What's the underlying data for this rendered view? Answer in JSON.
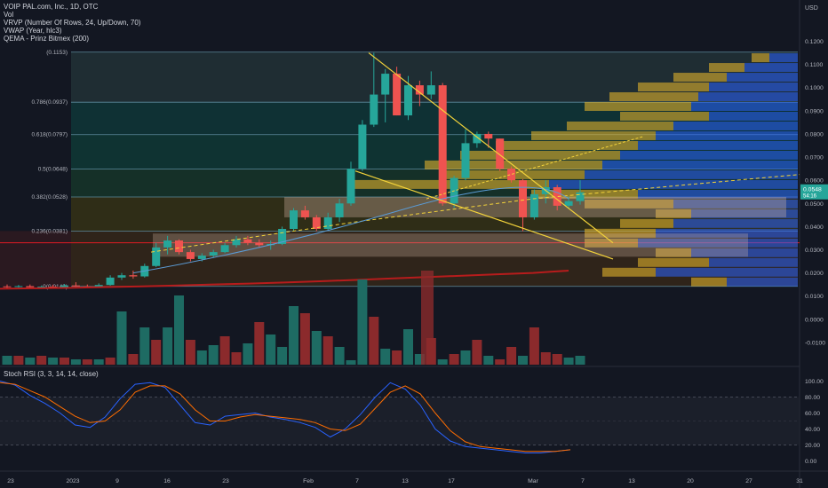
{
  "legend": {
    "symbol": "VOIP PAL.com, Inc., 1D, OTC",
    "vol": "Vol",
    "vrvp": "VRVP (Number Of Rows, 24, Up/Down, 70)",
    "vwap": "VWAP (Year, hlc3)",
    "qema": "QEMA - Prinz Bitmex (200)"
  },
  "stoch_title": "Stoch RSI (3, 3, 14, 14, close)",
  "colors": {
    "up": "#26a69a",
    "down": "#ef5350",
    "fib": "#4caf50",
    "trend": "#f3d33a",
    "qema": "#e01b24",
    "k": "#2962ff",
    "d": "#ff6d00"
  },
  "chart_data": [
    {
      "type": "candlestick",
      "currency": "USD",
      "ylim": [
        -0.015,
        0.129
      ],
      "y_ticks": [
        "0.1200",
        "0.1100",
        "0.1000",
        "0.0900",
        "0.0800",
        "0.0700",
        "0.0600",
        "0.0500",
        "0.0400",
        "0.0300",
        "0.0200",
        "0.0100",
        "0.0000",
        "-0.0100"
      ],
      "x_ticks": [
        "23",
        "2023",
        "9",
        "16",
        "23",
        "Feb",
        "7",
        "13",
        "17",
        "Mar",
        "7",
        "13",
        "20",
        "27",
        "31"
      ],
      "last_price": "0.0548",
      "last_price_sub": "54:16",
      "fib_levels": [
        {
          "label": "(0.1153)",
          "value": 0.1153
        },
        {
          "label": "0.786(0.0937)",
          "value": 0.0937
        },
        {
          "label": "0.618(0.0797)",
          "value": 0.0797
        },
        {
          "label": "0.5(0.0648)",
          "value": 0.0648
        },
        {
          "label": "0.382(0.0528)",
          "value": 0.0528
        },
        {
          "label": "0.236(0.0381)",
          "value": 0.0381
        },
        {
          "label": "0(0.0142)",
          "value": 0.0142
        }
      ],
      "candles": [
        {
          "o": 0.0142,
          "h": 0.015,
          "l": 0.0135,
          "c": 0.014
        },
        {
          "o": 0.014,
          "h": 0.0148,
          "l": 0.0136,
          "c": 0.0143
        },
        {
          "o": 0.0143,
          "h": 0.015,
          "l": 0.0134,
          "c": 0.0138
        },
        {
          "o": 0.0138,
          "h": 0.0146,
          "l": 0.0133,
          "c": 0.0141
        },
        {
          "o": 0.0141,
          "h": 0.0149,
          "l": 0.0136,
          "c": 0.0139
        },
        {
          "o": 0.0139,
          "h": 0.0152,
          "l": 0.0136,
          "c": 0.0146
        },
        {
          "o": 0.0146,
          "h": 0.016,
          "l": 0.014,
          "c": 0.0142
        },
        {
          "o": 0.0142,
          "h": 0.015,
          "l": 0.0138,
          "c": 0.014
        },
        {
          "o": 0.014,
          "h": 0.0155,
          "l": 0.0137,
          "c": 0.0148
        },
        {
          "o": 0.0148,
          "h": 0.019,
          "l": 0.0145,
          "c": 0.018
        },
        {
          "o": 0.018,
          "h": 0.02,
          "l": 0.017,
          "c": 0.019
        },
        {
          "o": 0.019,
          "h": 0.021,
          "l": 0.0175,
          "c": 0.0185
        },
        {
          "o": 0.0185,
          "h": 0.024,
          "l": 0.018,
          "c": 0.023
        },
        {
          "o": 0.023,
          "h": 0.033,
          "l": 0.0225,
          "c": 0.031
        },
        {
          "o": 0.031,
          "h": 0.036,
          "l": 0.028,
          "c": 0.034
        },
        {
          "o": 0.034,
          "h": 0.0345,
          "l": 0.028,
          "c": 0.029
        },
        {
          "o": 0.029,
          "h": 0.03,
          "l": 0.025,
          "c": 0.026
        },
        {
          "o": 0.026,
          "h": 0.0285,
          "l": 0.025,
          "c": 0.0275
        },
        {
          "o": 0.0275,
          "h": 0.03,
          "l": 0.0265,
          "c": 0.029
        },
        {
          "o": 0.029,
          "h": 0.033,
          "l": 0.0285,
          "c": 0.032
        },
        {
          "o": 0.032,
          "h": 0.036,
          "l": 0.031,
          "c": 0.0345
        },
        {
          "o": 0.0345,
          "h": 0.036,
          "l": 0.032,
          "c": 0.033
        },
        {
          "o": 0.033,
          "h": 0.0345,
          "l": 0.031,
          "c": 0.032
        },
        {
          "o": 0.032,
          "h": 0.034,
          "l": 0.03,
          "c": 0.0325
        },
        {
          "o": 0.0325,
          "h": 0.04,
          "l": 0.032,
          "c": 0.039
        },
        {
          "o": 0.039,
          "h": 0.048,
          "l": 0.038,
          "c": 0.047
        },
        {
          "o": 0.047,
          "h": 0.049,
          "l": 0.043,
          "c": 0.044
        },
        {
          "o": 0.044,
          "h": 0.045,
          "l": 0.038,
          "c": 0.039
        },
        {
          "o": 0.039,
          "h": 0.046,
          "l": 0.0385,
          "c": 0.044
        },
        {
          "o": 0.044,
          "h": 0.052,
          "l": 0.042,
          "c": 0.05
        },
        {
          "o": 0.05,
          "h": 0.068,
          "l": 0.049,
          "c": 0.065
        },
        {
          "o": 0.065,
          "h": 0.086,
          "l": 0.064,
          "c": 0.084
        },
        {
          "o": 0.084,
          "h": 0.115,
          "l": 0.083,
          "c": 0.097
        },
        {
          "o": 0.097,
          "h": 0.108,
          "l": 0.085,
          "c": 0.106
        },
        {
          "o": 0.106,
          "h": 0.109,
          "l": 0.088,
          "c": 0.088
        },
        {
          "o": 0.088,
          "h": 0.105,
          "l": 0.086,
          "c": 0.101
        },
        {
          "o": 0.101,
          "h": 0.103,
          "l": 0.092,
          "c": 0.097
        },
        {
          "o": 0.097,
          "h": 0.107,
          "l": 0.095,
          "c": 0.101
        },
        {
          "o": 0.101,
          "h": 0.102,
          "l": 0.049,
          "c": 0.05
        },
        {
          "o": 0.05,
          "h": 0.062,
          "l": 0.048,
          "c": 0.061
        },
        {
          "o": 0.061,
          "h": 0.082,
          "l": 0.06,
          "c": 0.076
        },
        {
          "o": 0.076,
          "h": 0.081,
          "l": 0.074,
          "c": 0.08
        },
        {
          "o": 0.08,
          "h": 0.081,
          "l": 0.074,
          "c": 0.078
        },
        {
          "o": 0.078,
          "h": 0.078,
          "l": 0.064,
          "c": 0.065
        },
        {
          "o": 0.065,
          "h": 0.066,
          "l": 0.059,
          "c": 0.06
        },
        {
          "o": 0.06,
          "h": 0.0605,
          "l": 0.038,
          "c": 0.044
        },
        {
          "o": 0.044,
          "h": 0.056,
          "l": 0.043,
          "c": 0.054
        },
        {
          "o": 0.054,
          "h": 0.06,
          "l": 0.05,
          "c": 0.057
        },
        {
          "o": 0.057,
          "h": 0.058,
          "l": 0.047,
          "c": 0.049
        },
        {
          "o": 0.049,
          "h": 0.053,
          "l": 0.048,
          "c": 0.051
        },
        {
          "o": 0.051,
          "h": 0.06,
          "l": 0.0495,
          "c": 0.0548
        }
      ],
      "volumes": [
        {
          "v": 0.1,
          "up": true
        },
        {
          "v": 0.1,
          "up": false
        },
        {
          "v": 0.08,
          "up": true
        },
        {
          "v": 0.1,
          "up": false
        },
        {
          "v": 0.08,
          "up": true
        },
        {
          "v": 0.08,
          "up": false
        },
        {
          "v": 0.06,
          "up": true
        },
        {
          "v": 0.06,
          "up": false
        },
        {
          "v": 0.06,
          "up": true
        },
        {
          "v": 0.08,
          "up": false
        },
        {
          "v": 0.6,
          "up": true
        },
        {
          "v": 0.12,
          "up": false
        },
        {
          "v": 0.42,
          "up": true
        },
        {
          "v": 0.28,
          "up": false
        },
        {
          "v": 0.42,
          "up": true
        },
        {
          "v": 0.78,
          "up": true
        },
        {
          "v": 0.28,
          "up": false
        },
        {
          "v": 0.16,
          "up": true
        },
        {
          "v": 0.22,
          "up": true
        },
        {
          "v": 0.32,
          "up": false
        },
        {
          "v": 0.14,
          "up": false
        },
        {
          "v": 0.24,
          "up": true
        },
        {
          "v": 0.48,
          "up": false
        },
        {
          "v": 0.34,
          "up": true
        },
        {
          "v": 0.2,
          "up": true
        },
        {
          "v": 0.66,
          "up": true
        },
        {
          "v": 0.58,
          "up": false
        },
        {
          "v": 0.38,
          "up": true
        },
        {
          "v": 0.32,
          "up": false
        },
        {
          "v": 0.2,
          "up": true
        },
        {
          "v": 0.05,
          "up": true
        },
        {
          "v": 0.96,
          "up": true
        },
        {
          "v": 0.54,
          "up": false
        },
        {
          "v": 0.18,
          "up": true
        },
        {
          "v": 0.16,
          "up": false
        },
        {
          "v": 0.4,
          "up": true
        },
        {
          "v": 0.12,
          "up": true
        },
        {
          "v": 0.3,
          "up": false
        },
        {
          "v": 0.06,
          "up": true
        },
        {
          "v": 0.12,
          "up": false
        },
        {
          "v": 0.16,
          "up": true
        },
        {
          "v": 0.28,
          "up": false
        },
        {
          "v": 0.1,
          "up": true
        },
        {
          "v": 0.06,
          "up": false
        },
        {
          "v": 0.2,
          "up": false
        },
        {
          "v": 0.1,
          "up": true
        },
        {
          "v": 0.42,
          "up": false
        },
        {
          "v": 0.14,
          "up": false
        },
        {
          "v": 0.12,
          "up": false
        },
        {
          "v": 0.08,
          "up": true
        },
        {
          "v": 0.1,
          "up": true
        }
      ],
      "vrvp_rows": [
        {
          "up": 0.1,
          "down": 0.2
        },
        {
          "up": 0.15,
          "down": 0.4
        },
        {
          "up": 0.2,
          "down": 0.25
        },
        {
          "up": 0.1,
          "down": 0.3
        },
        {
          "up": 0.15,
          "down": 0.45
        },
        {
          "up": 0.2,
          "down": 0.4
        },
        {
          "up": 0.15,
          "down": 0.35
        },
        {
          "up": 0.1,
          "down": 0.3
        },
        {
          "up": 0.25,
          "down": 0.35
        },
        {
          "up": 0.3,
          "down": 0.45
        },
        {
          "up": 0.55,
          "down": 0.7
        },
        {
          "up": 0.4,
          "down": 0.6
        },
        {
          "up": 0.5,
          "down": 0.55
        },
        {
          "up": 0.45,
          "down": 0.5
        },
        {
          "up": 0.4,
          "down": 0.45
        },
        {
          "up": 0.35,
          "down": 0.4
        },
        {
          "up": 0.3,
          "down": 0.35
        },
        {
          "up": 0.25,
          "down": 0.25
        },
        {
          "up": 0.3,
          "down": 0.3
        },
        {
          "up": 0.25,
          "down": 0.28
        },
        {
          "up": 0.2,
          "down": 0.25
        },
        {
          "up": 0.15,
          "down": 0.2
        },
        {
          "up": 0.1,
          "down": 0.15
        },
        {
          "up": 0.05,
          "down": 0.08
        }
      ]
    },
    {
      "type": "line",
      "title": "Stoch RSI (3, 3, 14, 14, close)",
      "ylim": [
        5,
        105
      ],
      "y_ticks": [
        "100.00",
        "80.00",
        "60.00",
        "40.00",
        "20.00",
        "0.00"
      ],
      "series": [
        {
          "name": "K",
          "values": [
            100,
            95,
            82,
            72,
            60,
            45,
            42,
            55,
            78,
            96,
            98,
            92,
            70,
            48,
            45,
            56,
            58,
            60,
            55,
            52,
            48,
            42,
            30,
            40,
            58,
            80,
            98,
            90,
            70,
            40,
            25,
            18,
            16,
            14,
            12,
            10,
            10,
            12,
            14
          ]
        },
        {
          "name": "D",
          "values": [
            98,
            96,
            88,
            80,
            68,
            56,
            48,
            50,
            64,
            86,
            94,
            94,
            84,
            64,
            50,
            50,
            55,
            58,
            56,
            54,
            52,
            48,
            40,
            38,
            46,
            66,
            86,
            94,
            84,
            60,
            38,
            24,
            18,
            16,
            14,
            12,
            12,
            12,
            14
          ]
        }
      ]
    }
  ]
}
